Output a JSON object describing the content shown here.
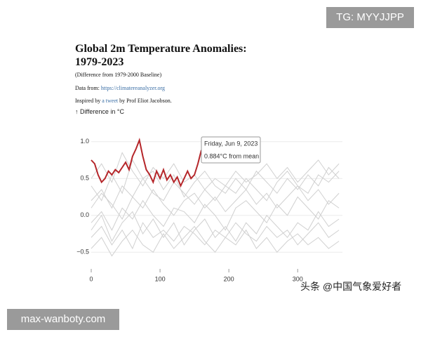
{
  "chart_data": {
    "type": "line",
    "title": "Global 2m Temperature Anomalies: 1979-2023",
    "subtitle": "(Difference from 1979-2000 Baseline)",
    "source_prefix": "Data from:",
    "source_link": "https://climatereanalyzer.org",
    "credit_prefix": "Inspired by",
    "credit_link": "a tweet",
    "credit_suffix": "by Prof Eliot Jacobson.",
    "ylabel": "↑ Difference in °C",
    "annotations": [
      "Friday, Jun 9, 2023",
      "0.884°C from mean"
    ],
    "xlim": [
      0,
      365
    ],
    "ylim": [
      -0.65,
      1.15
    ],
    "xticks": [
      0,
      100,
      200,
      300
    ],
    "yticks": [
      {
        "value": 1,
        "label": "1.0"
      },
      {
        "value": 0.5,
        "label": "0.5"
      },
      {
        "value": 0,
        "label": "0.0"
      },
      {
        "value": -0.5,
        "label": "−0.5"
      }
    ],
    "grid": true,
    "x": [
      0,
      15,
      30,
      45,
      60,
      75,
      90,
      105,
      120,
      135,
      150,
      165,
      180,
      195,
      210,
      225,
      240,
      255,
      270,
      285,
      300,
      315,
      330,
      345,
      360
    ],
    "series": [
      {
        "color": "#d0d0d0",
        "values": [
          0.2,
          0.35,
          0.1,
          0.4,
          0.25,
          0.5,
          0.3,
          0.2,
          0.45,
          0.3,
          0.15,
          0.35,
          0.2,
          0.4,
          0.3,
          0.5,
          0.35,
          0.2,
          0.45,
          0.6,
          0.4,
          0.3,
          0.55,
          0.45,
          0.6
        ]
      },
      {
        "color": "#d0d0d0",
        "values": [
          -0.1,
          0.05,
          -0.2,
          0.1,
          -0.05,
          0.2,
          0.0,
          -0.15,
          0.1,
          0.05,
          -0.1,
          0.15,
          0.0,
          -0.2,
          0.1,
          0.2,
          0.05,
          -0.1,
          0.15,
          0.0,
          0.25,
          0.1,
          -0.05,
          0.2,
          0.1
        ]
      },
      {
        "color": "#d0d0d0",
        "values": [
          -0.3,
          -0.15,
          -0.4,
          -0.2,
          -0.45,
          -0.1,
          -0.3,
          -0.2,
          -0.35,
          -0.15,
          -0.25,
          -0.4,
          -0.2,
          -0.3,
          -0.1,
          -0.25,
          -0.35,
          -0.15,
          -0.3,
          -0.2,
          -0.4,
          -0.25,
          -0.1,
          -0.3,
          -0.2
        ]
      },
      {
        "color": "#d0d0d0",
        "values": [
          0.5,
          0.7,
          0.45,
          0.85,
          0.6,
          0.4,
          0.65,
          0.5,
          0.7,
          0.45,
          0.55,
          0.35,
          0.5,
          0.4,
          0.6,
          0.45,
          0.55,
          0.7,
          0.5,
          0.65,
          0.45,
          0.6,
          0.75,
          0.55,
          0.7
        ]
      },
      {
        "color": "#d0d0d0",
        "values": [
          0.1,
          0.3,
          0.15,
          -0.05,
          0.25,
          0.1,
          0.35,
          0.15,
          0.0,
          0.2,
          0.3,
          0.1,
          0.25,
          0.05,
          0.2,
          0.35,
          0.15,
          0.3,
          0.1,
          0.25,
          0.4,
          0.2,
          0.35,
          0.15,
          0.3
        ]
      },
      {
        "color": "#d0d0d0",
        "values": [
          -0.2,
          0.0,
          -0.35,
          -0.1,
          0.05,
          -0.25,
          -0.05,
          -0.3,
          -0.1,
          -0.4,
          -0.2,
          -0.05,
          -0.3,
          -0.15,
          -0.35,
          -0.1,
          -0.25,
          0.0,
          -0.15,
          -0.3,
          -0.1,
          -0.2,
          0.05,
          -0.15,
          -0.05
        ]
      },
      {
        "color": "#d0d0d0",
        "values": [
          0.4,
          0.2,
          0.55,
          0.3,
          0.75,
          0.5,
          0.6,
          0.35,
          0.55,
          0.25,
          0.45,
          0.6,
          0.4,
          0.3,
          0.5,
          0.35,
          0.6,
          0.45,
          0.3,
          0.5,
          0.35,
          0.55,
          0.4,
          0.65,
          0.5
        ]
      },
      {
        "color": "#d0d0d0",
        "values": [
          -0.45,
          -0.3,
          -0.55,
          -0.35,
          -0.2,
          -0.4,
          -0.5,
          -0.25,
          -0.45,
          -0.3,
          -0.15,
          -0.35,
          -0.5,
          -0.3,
          -0.4,
          -0.2,
          -0.45,
          -0.3,
          -0.5,
          -0.35,
          -0.25,
          -0.4,
          -0.3,
          -0.45,
          -0.35
        ]
      },
      {
        "color": "#b5262a",
        "x": [
          0,
          5,
          10,
          15,
          20,
          25,
          30,
          35,
          40,
          45,
          50,
          55,
          60,
          65,
          70,
          75,
          80,
          85,
          90,
          95,
          100,
          105,
          110,
          115,
          120,
          125,
          130,
          135,
          140,
          145,
          150,
          155,
          160
        ],
        "values": [
          0.75,
          0.7,
          0.55,
          0.45,
          0.5,
          0.6,
          0.55,
          0.62,
          0.58,
          0.65,
          0.72,
          0.62,
          0.8,
          0.9,
          1.02,
          0.8,
          0.62,
          0.55,
          0.45,
          0.6,
          0.5,
          0.62,
          0.48,
          0.55,
          0.45,
          0.52,
          0.4,
          0.5,
          0.6,
          0.5,
          0.55,
          0.7,
          0.884
        ]
      }
    ]
  },
  "watermarks": [
    "TG: MYYJJPP",
    "max-wanboty.com",
    "头条 @中国气象爱好者"
  ]
}
